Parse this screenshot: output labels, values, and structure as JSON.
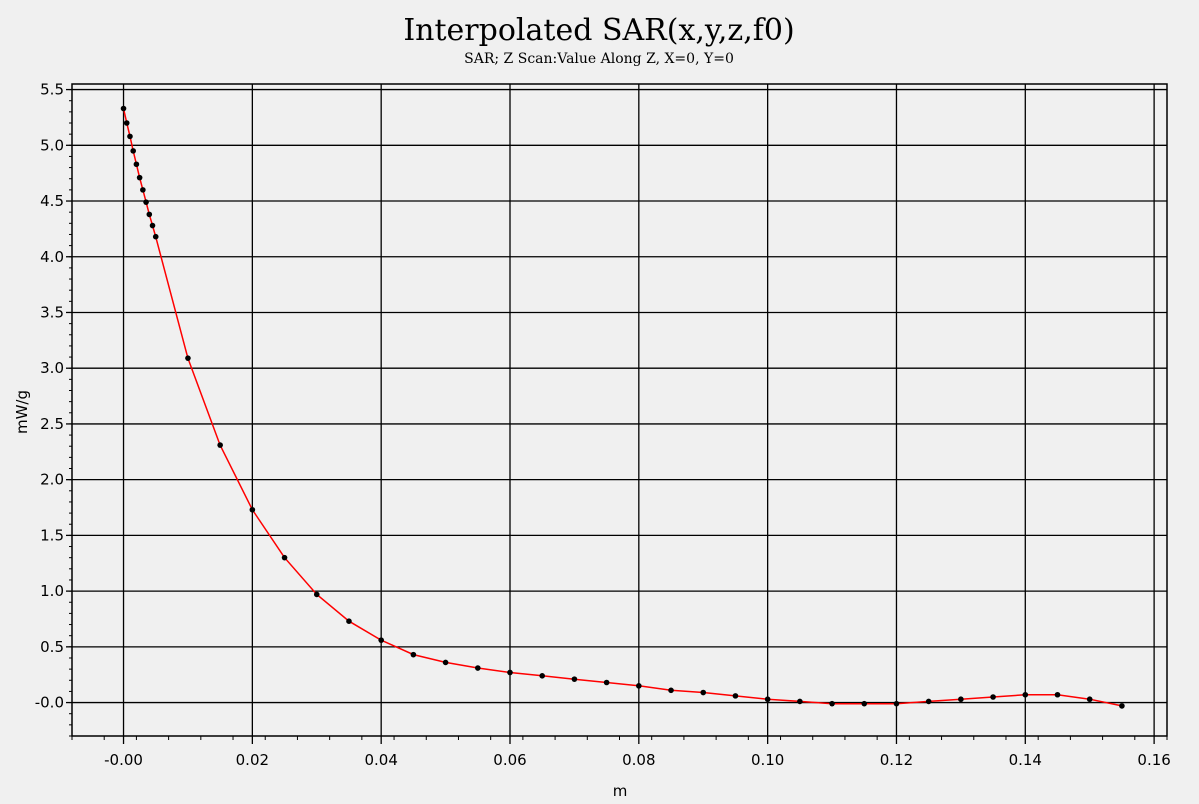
{
  "chart_data": {
    "type": "line",
    "title": "Interpolated SAR(x,y,z,f0)",
    "subtitle": "SAR; Z Scan:Value Along Z, X=0, Y=0",
    "xlabel": "m",
    "ylabel": "mW/g",
    "xlim": [
      -0.008,
      0.162
    ],
    "ylim": [
      -0.3,
      5.55
    ],
    "grid": true,
    "x_ticks": [
      0,
      0.02,
      0.04,
      0.06,
      0.08,
      0.1,
      0.12,
      0.14,
      0.16
    ],
    "x_tick_labels": [
      "-0.00",
      "0.02",
      "0.04",
      "0.06",
      "0.08",
      "0.10",
      "0.12",
      "0.14",
      "0.16"
    ],
    "y_ticks": [
      0,
      0.5,
      1.0,
      1.5,
      2.0,
      2.5,
      3.0,
      3.5,
      4.0,
      4.5,
      5.0,
      5.5
    ],
    "y_tick_labels": [
      "-0.0",
      "0.5",
      "1.0",
      "1.5",
      "2.0",
      "2.5",
      "3.0",
      "3.5",
      "4.0",
      "4.5",
      "5.0",
      "5.5"
    ],
    "colors": {
      "line": "#ff0000",
      "marker": "#000000",
      "grid": "#000000",
      "background": "#f0f0f0"
    },
    "series": [
      {
        "x": [
          0.0,
          0.0005,
          0.001,
          0.0015,
          0.002,
          0.0025,
          0.003,
          0.0035,
          0.004,
          0.0045,
          0.005,
          0.01,
          0.015,
          0.02,
          0.025,
          0.03,
          0.035,
          0.04,
          0.045,
          0.05,
          0.055,
          0.06,
          0.065,
          0.07,
          0.075,
          0.08,
          0.085,
          0.09,
          0.095,
          0.1,
          0.105,
          0.11,
          0.115,
          0.12,
          0.125,
          0.13,
          0.135,
          0.14,
          0.145,
          0.15,
          0.155
        ],
        "values": [
          5.33,
          5.2,
          5.08,
          4.95,
          4.83,
          4.71,
          4.6,
          4.49,
          4.38,
          4.28,
          4.18,
          3.09,
          2.31,
          1.73,
          1.3,
          0.97,
          0.73,
          0.56,
          0.43,
          0.36,
          0.31,
          0.27,
          0.24,
          0.21,
          0.18,
          0.15,
          0.11,
          0.09,
          0.06,
          0.03,
          0.01,
          -0.01,
          -0.01,
          -0.01,
          0.01,
          0.03,
          0.05,
          0.07,
          0.07,
          0.03,
          -0.03
        ]
      }
    ]
  }
}
